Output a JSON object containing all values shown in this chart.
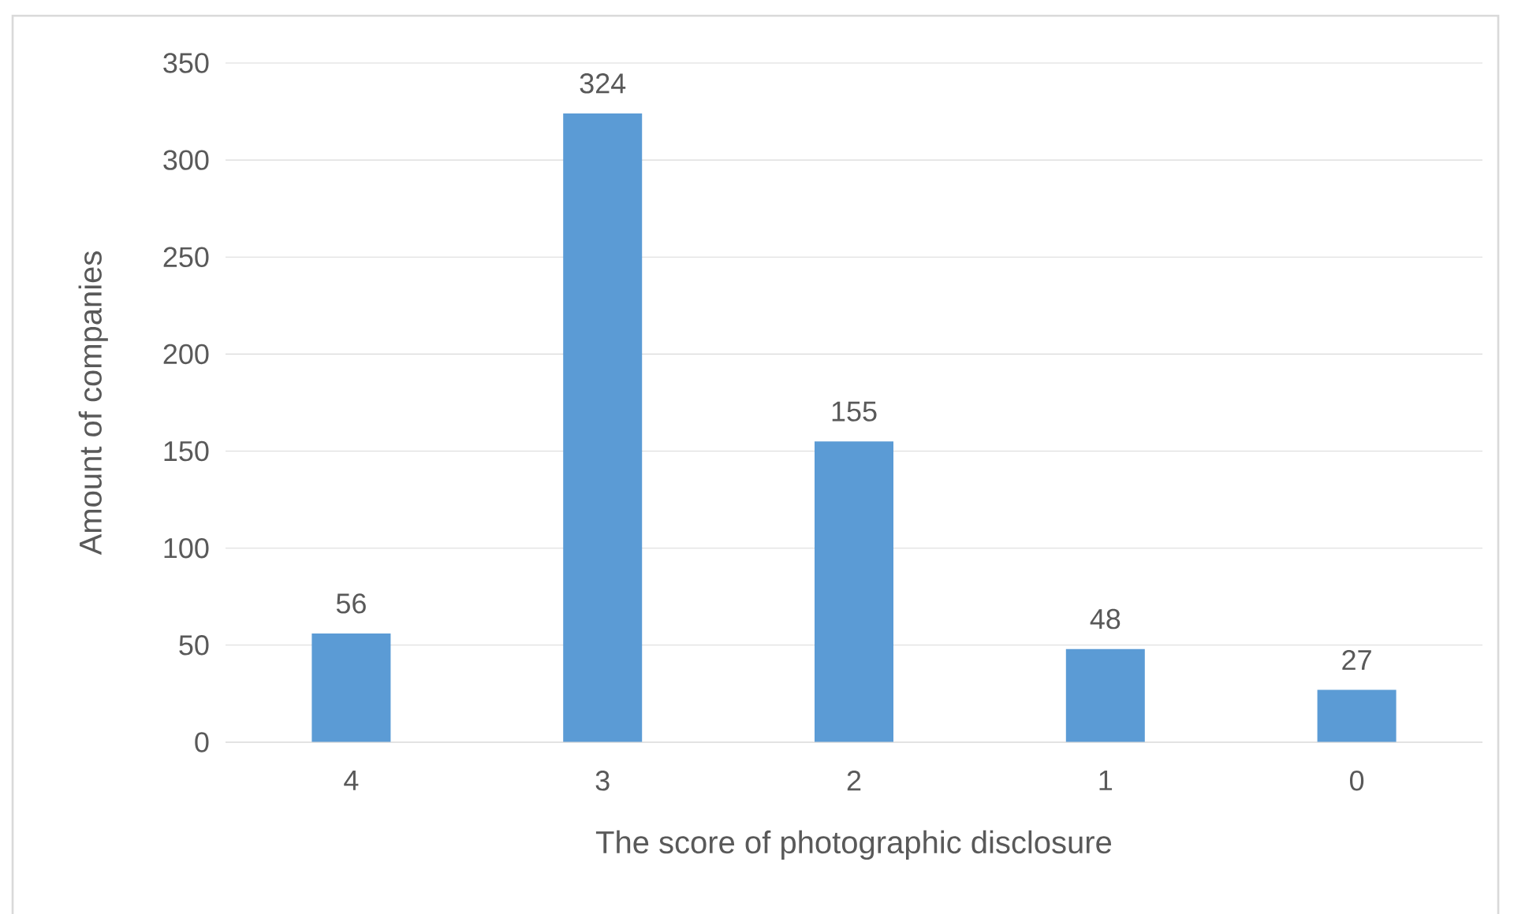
{
  "chart_data": {
    "type": "bar",
    "xlabel": "The score of photographic disclosure",
    "ylabel": "Amount of companies",
    "categories": [
      "4",
      "3",
      "2",
      "1",
      "0"
    ],
    "values": [
      56,
      324,
      155,
      48,
      27
    ],
    "value_labels": [
      "56",
      "324",
      "155",
      "48",
      "27"
    ],
    "color": "#5b9bd5",
    "ylim": [
      0,
      350
    ],
    "yticks": [
      0,
      50,
      100,
      150,
      200,
      250,
      300,
      350
    ],
    "grid": "y"
  }
}
